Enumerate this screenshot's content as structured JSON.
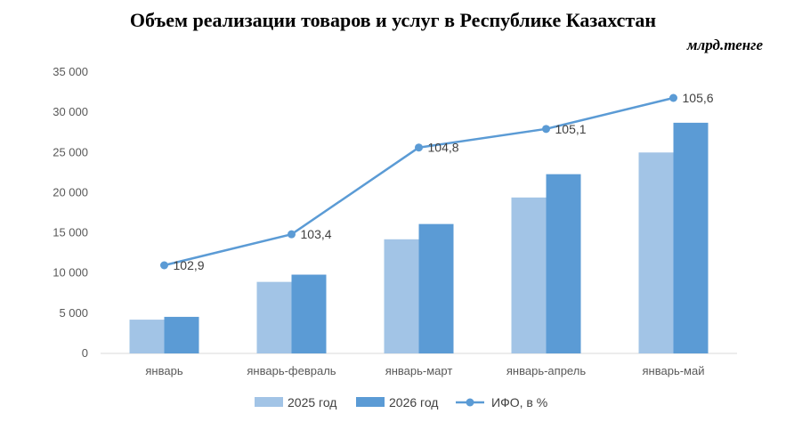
{
  "header": {
    "title": "Объем реализации товаров и услуг в Республике Казахстан",
    "unit": "млрд.тенге"
  },
  "colors": {
    "series_2025": "#a2c4e6",
    "series_2026": "#5b9bd5",
    "line": "#5b9bd5",
    "axis": "#d9d9d9"
  },
  "chart_data": {
    "type": "bar",
    "title": "Объем реализации товаров и услуг в Республике Казахстан",
    "ylabel": "",
    "xlabel": "",
    "ylim": [
      0,
      35000
    ],
    "yticks": [
      0,
      5000,
      10000,
      15000,
      20000,
      25000,
      30000,
      35000
    ],
    "ytick_labels": [
      "0",
      "5 000",
      "10 000",
      "15 000",
      "20 000",
      "25 000",
      "30 000",
      "35 000"
    ],
    "grid": false,
    "legend_position": "bottom",
    "categories": [
      "январь",
      "январь-февраль",
      "январь-март",
      "январь-апрель",
      "январь-май"
    ],
    "series": [
      {
        "name": "2025 год",
        "type": "bar",
        "values": [
          4200,
          8900,
          14200,
          19400,
          25000
        ]
      },
      {
        "name": "2026 год",
        "type": "bar",
        "values": [
          4550,
          9800,
          16100,
          22300,
          28700
        ]
      },
      {
        "name": "ИФО, в %",
        "type": "line",
        "values": [
          102.9,
          103.4,
          104.8,
          105.1,
          105.6
        ],
        "labels": [
          "102,9",
          "103,4",
          "104,8",
          "105,1",
          "105,6"
        ]
      }
    ]
  }
}
